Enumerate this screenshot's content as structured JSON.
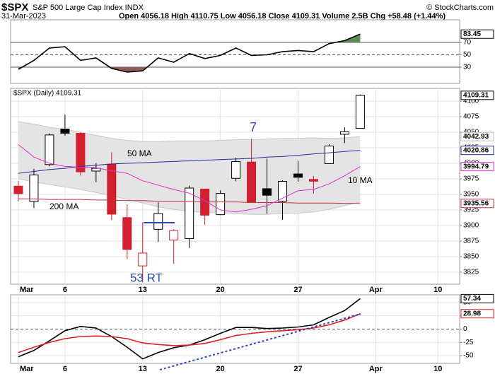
{
  "header": {
    "symbol": "$SPX",
    "name": "S&P 500 Large Cap Index INDX",
    "date": "31-Mar-2023",
    "quote_line": "Open 4056.18 High 4110.75 Low 4056.18 Close 4109.31 Volume 2.5B Chg +58.48 (+1.44%)",
    "credit": "© StockCharts.com"
  },
  "chart_data": [
    {
      "type": "line",
      "xlim": [
        -0.5,
        28.4
      ],
      "ylim": [
        3.7,
        106.6
      ],
      "yticks": [
        70,
        50,
        30
      ],
      "ref_style": [
        "solid",
        "dashed",
        "solid"
      ],
      "overbought_fill": "#5b8c55",
      "oversold_fill": "#8f5d58",
      "series": [
        {
          "color": "#000000",
          "values": [
            26.6,
            41,
            61,
            63,
            41,
            45,
            28,
            22,
            24,
            45,
            38,
            52,
            44,
            49,
            61,
            49,
            50,
            55,
            57,
            55,
            68,
            73,
            83.45
          ]
        }
      ]
    },
    {
      "type": "candlestick",
      "legend_label": "$SPX (Daily) 4109.31",
      "xlim": [
        -0.5,
        28.4
      ],
      "ylim": [
        3805.7,
        4120.5
      ],
      "yticks": [
        4100,
        4075,
        4050,
        4025,
        4000,
        3975,
        3950,
        3925,
        3900,
        3875,
        3850,
        3825
      ],
      "xticks": [
        {
          "value": 0,
          "label": "Mar"
        },
        {
          "value": 3,
          "label": "6"
        },
        {
          "value": 8,
          "label": "13"
        },
        {
          "value": 13,
          "label": "20"
        },
        {
          "value": 18,
          "label": "27"
        },
        {
          "value": 23,
          "label": "Apr"
        },
        {
          "value": 27,
          "label": "10"
        }
      ],
      "up_color": "#000000",
      "down_color": "#d21f2f",
      "open": [
        3963.34,
        3938.68,
        3998.02,
        4055.15,
        4048.26,
        3987.55,
        3998.66,
        3912.77,
        3835.12,
        3894.01,
        3876.74,
        3878.93,
        3958.69,
        3917.47,
        3975.89,
        4002.04,
        3959.21,
        3939.21,
        3982.93,
        3974.13,
        3999.53,
        4046.74,
        4056.18
      ],
      "high": [
        3971.73,
        3990.84,
        4048.29,
        4078.49,
        4050.0,
        4000.41,
        4017.81,
        3934.05,
        3905.05,
        3937.29,
        3894.31,
        3964.46,
        3958.91,
        3956.62,
        4009.08,
        4039.49,
        4007.66,
        3972.74,
        4003.78,
        3979.2,
        4030.59,
        4057.85,
        4110.75
      ],
      "low": [
        3939.05,
        3928.16,
        3995.17,
        4044.61,
        3980.31,
        3969.76,
        3908.7,
        3846.32,
        3808.86,
        3873.63,
        3838.24,
        3864.11,
        3901.27,
        3916.89,
        3971.19,
        3936.17,
        3919.05,
        3909.16,
        3970.49,
        3951.53,
        3999.53,
        4032.56,
        4056.18
      ],
      "close": [
        3951.39,
        3981.35,
        4045.64,
        4048.42,
        3986.37,
        3992.01,
        3918.32,
        3861.59,
        3855.76,
        3919.29,
        3891.93,
        3960.28,
        3916.64,
        3951.57,
        4002.87,
        3936.97,
        3948.72,
        3970.99,
        3977.53,
        3971.27,
        4027.81,
        4050.83,
        4109.31
      ],
      "band": {
        "color": "#e4e4e4",
        "edge_color": "#c8c8c8",
        "badge_color": "#777777",
        "upper": [
          4067,
          4063,
          4058,
          4055,
          4050,
          4045,
          4040,
          4037,
          4035,
          4035,
          4036,
          4036,
          4036,
          4037,
          4038,
          4038,
          4039,
          4040,
          4040,
          4041,
          4040,
          4041,
          4042.93
        ],
        "lower": [
          3975,
          3970,
          3966,
          3962,
          3958,
          3953,
          3948,
          3942,
          3936,
          3930,
          3926,
          3923,
          3921,
          3920,
          3919,
          3918,
          3918,
          3919,
          3920,
          3922,
          3926,
          3932,
          3938
        ]
      },
      "series": [
        {
          "name": "50 MA",
          "color": "#1f2f99",
          "values": [
            3984,
            3987,
            3990,
            3992,
            3995,
            3997,
            3999,
            4000,
            4001,
            4002,
            4003,
            4004,
            4005,
            4006,
            4007,
            4008,
            4010,
            4011,
            4013,
            4015,
            4017,
            4019,
            4020.86
          ]
        },
        {
          "name": "200 MA",
          "color": "#c0303a",
          "values": [
            3943,
            3943,
            3942,
            3942,
            3942,
            3941,
            3941,
            3940,
            3940,
            3939,
            3939,
            3939,
            3938,
            3938,
            3938,
            3937,
            3937,
            3937,
            3936,
            3936,
            3936,
            3935.7,
            3935.56
          ]
        },
        {
          "name": "10 MA",
          "color": "#e02bd0",
          "values": [
            4030,
            4010,
            4000,
            3995,
            3994,
            3993,
            3988,
            3984,
            3972,
            3965,
            3958,
            3952,
            3940,
            3925,
            3922,
            3926,
            3932,
            3944,
            3956,
            3958,
            3967,
            3980,
            3994.79
          ]
        }
      ],
      "annotations": [
        {
          "text": "7",
          "color": "#2a4fb5"
        },
        {
          "text": "53 RT",
          "color": "#2a4fb5"
        }
      ]
    },
    {
      "type": "line",
      "xlim": [
        -0.5,
        28.4
      ],
      "ylim": [
        -64.5,
        64.5
      ],
      "yticks": [
        50,
        25,
        0,
        -25,
        -50
      ],
      "ref_style": [
        "grid",
        "grid",
        "dashed",
        "grid",
        "grid"
      ],
      "xticks": [
        {
          "value": 0,
          "label": "Mar"
        },
        {
          "value": 3,
          "label": "6"
        },
        {
          "value": 8,
          "label": "13"
        },
        {
          "value": 13,
          "label": "20"
        },
        {
          "value": 18,
          "label": "27"
        },
        {
          "value": 23,
          "label": "Apr"
        },
        {
          "value": 27,
          "label": "10"
        }
      ],
      "series": [
        {
          "color": "#000000",
          "values": [
            -52,
            -40,
            -22,
            -3,
            5,
            2,
            -14,
            -34,
            -56,
            -44,
            -35,
            -30,
            -20,
            -8,
            3,
            3,
            1,
            2,
            4,
            8,
            22,
            35,
            57.34
          ]
        },
        {
          "color": "#e02020",
          "values": [
            -44,
            -34,
            -25,
            -18,
            -14,
            -13,
            -14,
            -18,
            -26,
            -29,
            -31,
            -30,
            -27,
            -20,
            -12,
            -8,
            -5,
            -3,
            -1,
            2,
            8,
            17,
            28.98
          ]
        }
      ]
    }
  ]
}
